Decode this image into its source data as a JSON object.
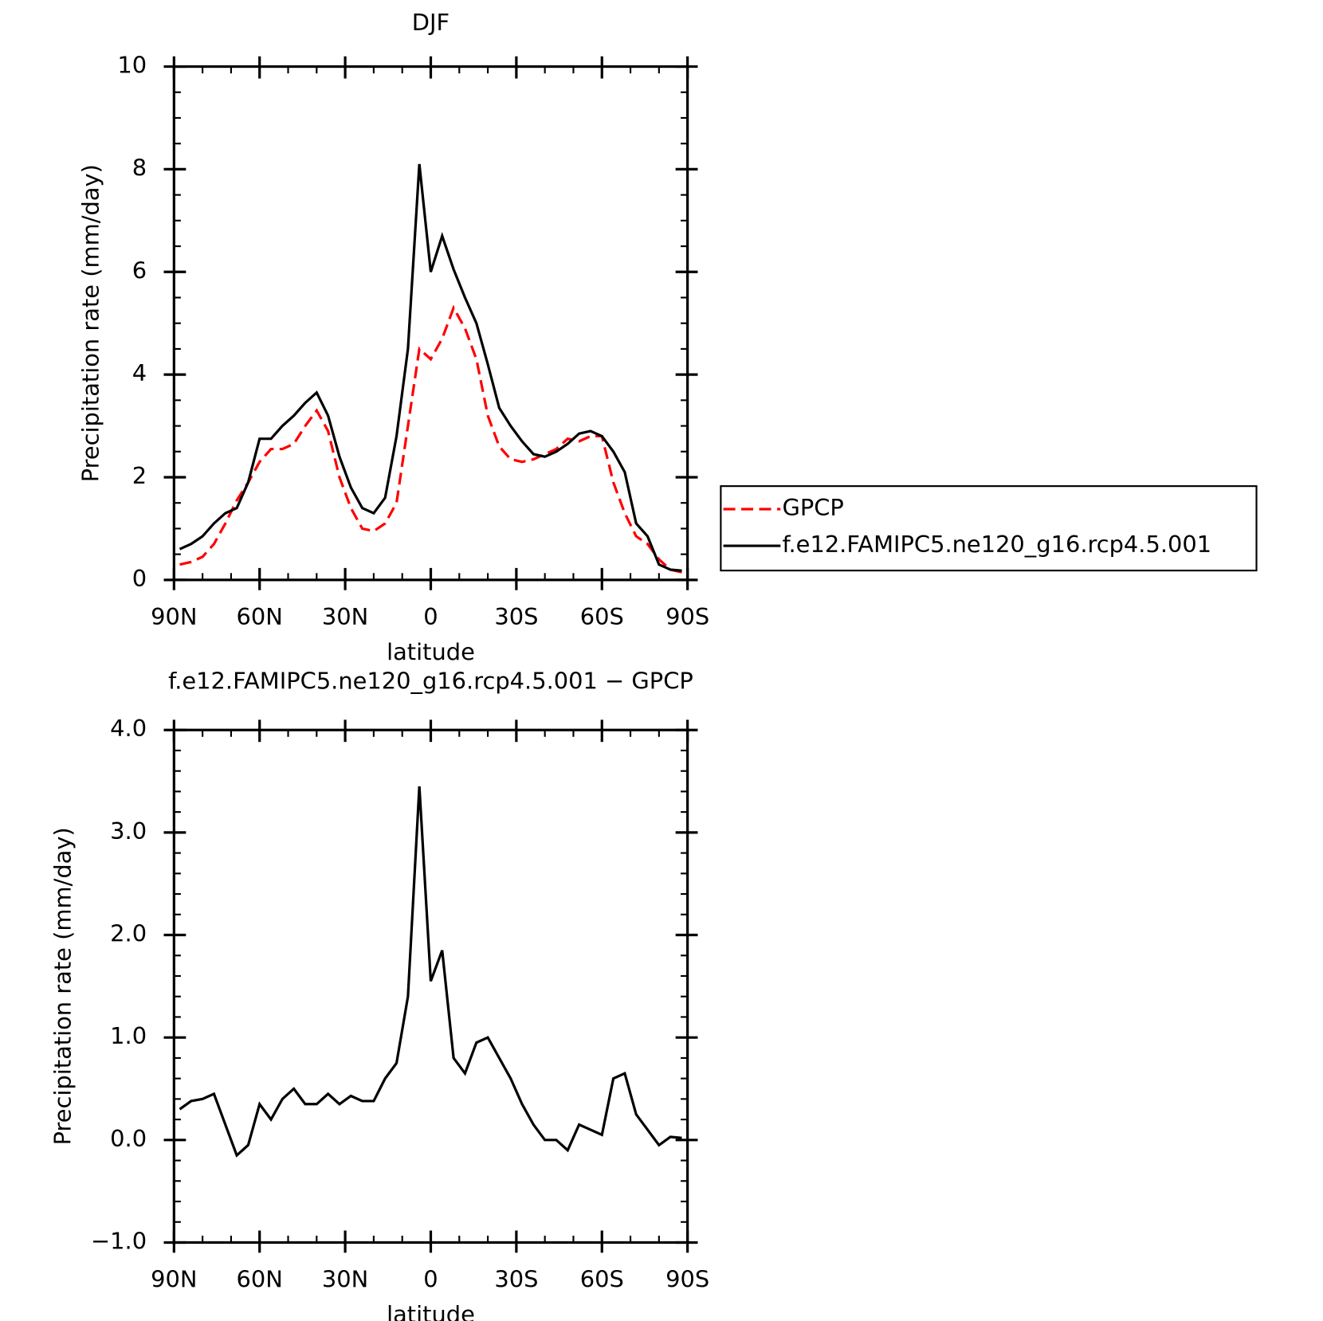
{
  "chart_data": [
    {
      "type": "line",
      "title": "DJF",
      "xlabel": "latitude",
      "ylabel": "Precipitation rate (mm/day)",
      "x": [
        88,
        84,
        80,
        76,
        72,
        68,
        64,
        60,
        56,
        52,
        48,
        44,
        40,
        36,
        32,
        28,
        24,
        20,
        16,
        12,
        8,
        4,
        0,
        -4,
        -8,
        -12,
        -16,
        -20,
        -24,
        -28,
        -32,
        -36,
        -40,
        -44,
        -48,
        -52,
        -56,
        -60,
        -64,
        -68,
        -72,
        -76,
        -80,
        -84,
        -88
      ],
      "series": [
        {
          "name": "GPCP",
          "color": "#ff0000",
          "dash": true,
          "values": [
            0.3,
            0.35,
            0.45,
            0.7,
            1.1,
            1.55,
            1.9,
            2.3,
            2.55,
            2.55,
            2.65,
            3.0,
            3.3,
            2.9,
            2.0,
            1.4,
            1.0,
            0.95,
            1.1,
            1.5,
            3.0,
            4.5,
            4.3,
            4.7,
            5.3,
            4.9,
            4.3,
            3.2,
            2.6,
            2.35,
            2.3,
            2.35,
            2.45,
            2.55,
            2.75,
            2.7,
            2.8,
            2.8,
            1.9,
            1.3,
            0.85,
            0.7,
            0.4,
            0.2,
            0.15
          ]
        },
        {
          "name": "f.e12.FAMIPC5.ne120_g16.rcp4.5.001",
          "color": "#000000",
          "dash": false,
          "values": [
            0.6,
            0.7,
            0.85,
            1.1,
            1.3,
            1.4,
            1.9,
            2.75,
            2.75,
            3.0,
            3.2,
            3.45,
            3.65,
            3.2,
            2.4,
            1.8,
            1.4,
            1.3,
            1.6,
            2.8,
            4.5,
            8.1,
            6.0,
            6.7,
            6.05,
            5.5,
            5.0,
            4.2,
            3.35,
            3.0,
            2.7,
            2.45,
            2.4,
            2.5,
            2.65,
            2.85,
            2.9,
            2.8,
            2.5,
            2.1,
            1.1,
            0.85,
            0.3,
            0.2,
            0.18
          ]
        }
      ],
      "xlim": [
        90,
        -90
      ],
      "xticks": [
        {
          "value": 90,
          "label": "90N"
        },
        {
          "value": 60,
          "label": "60N"
        },
        {
          "value": 30,
          "label": "30N"
        },
        0,
        {
          "value": -30,
          "label": "30S"
        },
        {
          "value": -60,
          "label": "60S"
        },
        {
          "value": -90,
          "label": "90S"
        }
      ],
      "ylim": [
        0,
        10
      ],
      "yticks": [
        0,
        2,
        4,
        6,
        8,
        10
      ],
      "legend": "right"
    },
    {
      "type": "line",
      "title": "f.e12.FAMIPC5.ne120_g16.rcp4.5.001 − GPCP",
      "xlabel": "latitude",
      "ylabel": "Precipitation rate (mm/day)",
      "x": [
        88,
        84,
        80,
        76,
        72,
        68,
        64,
        60,
        56,
        52,
        48,
        44,
        40,
        36,
        32,
        28,
        24,
        20,
        16,
        12,
        8,
        4,
        0,
        -4,
        -8,
        -12,
        -16,
        -20,
        -24,
        -28,
        -32,
        -36,
        -40,
        -44,
        -48,
        -52,
        -56,
        -60,
        -64,
        -68,
        -72,
        -76,
        -80,
        -84,
        -88
      ],
      "series": [
        {
          "color": "#000000",
          "dash": false,
          "values": [
            0.3,
            0.38,
            0.4,
            0.45,
            0.15,
            -0.15,
            -0.05,
            0.35,
            0.2,
            0.4,
            0.5,
            0.35,
            0.35,
            0.45,
            0.35,
            0.43,
            0.38,
            0.38,
            0.6,
            0.75,
            1.4,
            3.45,
            1.55,
            1.85,
            0.8,
            0.65,
            0.95,
            1.0,
            0.8,
            0.6,
            0.35,
            0.15,
            0.0,
            0.0,
            -0.1,
            0.15,
            0.1,
            0.05,
            0.6,
            0.65,
            0.25,
            0.1,
            -0.05,
            0.03,
            0.02
          ]
        }
      ],
      "xlim": [
        90,
        -90
      ],
      "xticks": [
        {
          "value": 90,
          "label": "90N"
        },
        {
          "value": 60,
          "label": "60N"
        },
        {
          "value": 30,
          "label": "30N"
        },
        0,
        {
          "value": -30,
          "label": "30S"
        },
        {
          "value": -60,
          "label": "60S"
        },
        {
          "value": -90,
          "label": "90S"
        }
      ],
      "ylim": [
        -1,
        4
      ],
      "yticks": [
        {
          "value": -1,
          "label": "−1.0"
        },
        {
          "value": 0,
          "label": "0.0"
        },
        {
          "value": 1,
          "label": "1.0"
        },
        {
          "value": 2,
          "label": "2.0"
        },
        {
          "value": 3,
          "label": "3.0"
        },
        {
          "value": 4,
          "label": "4.0"
        }
      ]
    }
  ]
}
